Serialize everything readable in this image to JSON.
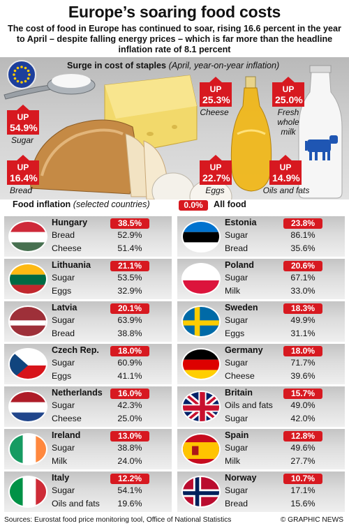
{
  "title": "Europe’s soaring food costs",
  "intro": "The cost of food in Europe has continued to soar, rising 16.6 percent in the year to April – despite falling energy prices – which is far more than the headline inflation rate of 8.1 percent",
  "staples": {
    "heading": "Surge in cost of staples",
    "subheading": "(April, year-on-year inflation)",
    "up_word": "UP",
    "items": [
      {
        "name": "Sugar",
        "value": "54.9%"
      },
      {
        "name": "Bread",
        "value": "16.4%"
      },
      {
        "name": "Cheese",
        "value": "25.3%"
      },
      {
        "name": "Eggs",
        "value": "22.7%"
      },
      {
        "name": "Oils and fats",
        "value": "14.9%"
      },
      {
        "name": "Fresh whole milk",
        "value": "25.0%"
      }
    ]
  },
  "section": {
    "heading": "Food inflation",
    "subheading": "(selected countries)",
    "legend_value": "0.0%",
    "legend_label": "All food"
  },
  "colors": {
    "accent": "#d71920"
  },
  "chart_data": {
    "type": "table",
    "countries": [
      {
        "name": "Hungary",
        "all_food": "38.5%",
        "items": [
          {
            "name": "Bread",
            "value": "52.9%"
          },
          {
            "name": "Cheese",
            "value": "51.4%"
          }
        ]
      },
      {
        "name": "Estonia",
        "all_food": "23.8%",
        "items": [
          {
            "name": "Sugar",
            "value": "86.1%"
          },
          {
            "name": "Bread",
            "value": "35.6%"
          }
        ]
      },
      {
        "name": "Lithuania",
        "all_food": "21.1%",
        "items": [
          {
            "name": "Sugar",
            "value": "53.5%"
          },
          {
            "name": "Eggs",
            "value": "32.9%"
          }
        ]
      },
      {
        "name": "Poland",
        "all_food": "20.6%",
        "items": [
          {
            "name": "Sugar",
            "value": "67.1%"
          },
          {
            "name": "Milk",
            "value": "33.0%"
          }
        ]
      },
      {
        "name": "Latvia",
        "all_food": "20.1%",
        "items": [
          {
            "name": "Sugar",
            "value": "63.9%"
          },
          {
            "name": "Bread",
            "value": "38.8%"
          }
        ]
      },
      {
        "name": "Sweden",
        "all_food": "18.3%",
        "items": [
          {
            "name": "Sugar",
            "value": "49.9%"
          },
          {
            "name": "Eggs",
            "value": "31.1%"
          }
        ]
      },
      {
        "name": "Czech Rep.",
        "all_food": "18.0%",
        "items": [
          {
            "name": "Sugar",
            "value": "60.9%"
          },
          {
            "name": "Eggs",
            "value": "41.1%"
          }
        ]
      },
      {
        "name": "Germany",
        "all_food": "18.0%",
        "items": [
          {
            "name": "Sugar",
            "value": "71.7%"
          },
          {
            "name": "Cheese",
            "value": "39.6%"
          }
        ]
      },
      {
        "name": "Netherlands",
        "all_food": "16.0%",
        "items": [
          {
            "name": "Sugar",
            "value": "42.3%"
          },
          {
            "name": "Cheese",
            "value": "25.0%"
          }
        ]
      },
      {
        "name": "Britain",
        "all_food": "15.7%",
        "items": [
          {
            "name": "Oils and fats",
            "value": "49.0%"
          },
          {
            "name": "Sugar",
            "value": "42.0%"
          }
        ]
      },
      {
        "name": "Ireland",
        "all_food": "13.0%",
        "items": [
          {
            "name": "Sugar",
            "value": "38.8%"
          },
          {
            "name": "Milk",
            "value": "24.0%"
          }
        ]
      },
      {
        "name": "Spain",
        "all_food": "12.8%",
        "items": [
          {
            "name": "Sugar",
            "value": "49.6%"
          },
          {
            "name": "Milk",
            "value": "27.7%"
          }
        ]
      },
      {
        "name": "Italy",
        "all_food": "12.2%",
        "items": [
          {
            "name": "Sugar",
            "value": "54.1%"
          },
          {
            "name": "Oils and fats",
            "value": "19.6%"
          }
        ]
      },
      {
        "name": "Norway",
        "all_food": "10.7%",
        "items": [
          {
            "name": "Sugar",
            "value": "17.1%"
          },
          {
            "name": "Bread",
            "value": "15.6%"
          }
        ]
      }
    ]
  },
  "footer": {
    "sources": "Sources: Eurostat food price monitoring tool, Office of National Statistics",
    "credit": "© GRAPHIC NEWS"
  }
}
